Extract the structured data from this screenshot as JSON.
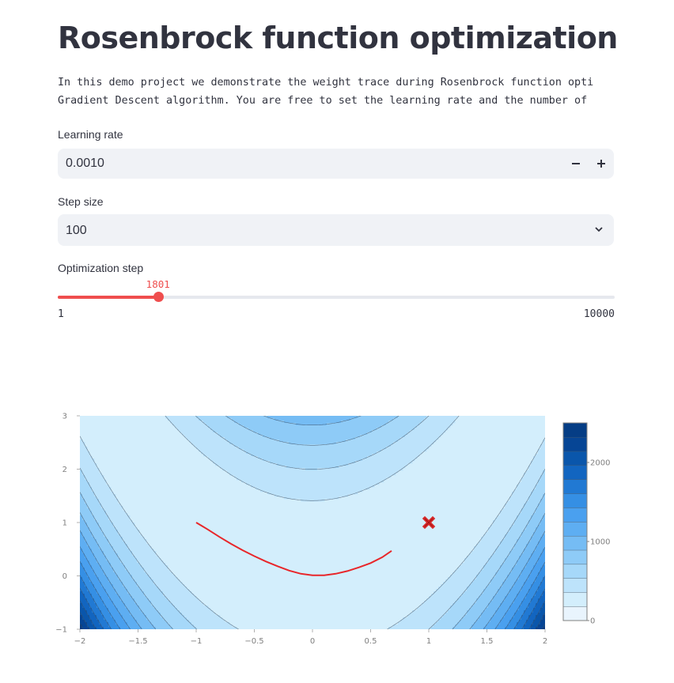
{
  "page": {
    "title": "Rosenbrock function optimization",
    "intro_lines": [
      "In this demo project we demonstrate the weight trace during Rosenbrock function opti",
      "Gradient Descent algorithm. You are free to set the learning rate and the number of"
    ]
  },
  "learning_rate": {
    "label": "Learning rate",
    "value": "0.0010",
    "minus_icon": "minus-icon",
    "plus_icon": "plus-icon"
  },
  "step_size": {
    "label": "Step size",
    "value": "100",
    "icon": "chevron-down-icon"
  },
  "optimization_step": {
    "label": "Optimization step",
    "value": "1801",
    "min": "1",
    "max": "10000",
    "fraction": 0.18
  },
  "colors": {
    "accent": "#ef4e4e",
    "input_bg": "#f0f2f6",
    "trace": "#e8262a",
    "marker": "#d62728"
  },
  "chart_data": {
    "type": "contour",
    "function": "(1 - x)^2 + 100 (y - x^2)^2",
    "xlim": [
      -2,
      2
    ],
    "ylim": [
      -1,
      3
    ],
    "x_ticks": [
      "−2",
      "−1.5",
      "−1",
      "−0.5",
      "0",
      "0.5",
      "1",
      "1.5",
      "2"
    ],
    "y_ticks": [
      "−1",
      "0",
      "1",
      "2",
      "3"
    ],
    "contour_levels": [
      200,
      400,
      600,
      800,
      1000,
      1200,
      1400,
      1600,
      1800,
      2000,
      2200,
      2400
    ],
    "colorscale": [
      "#e9f4fd",
      "#d3eefc",
      "#bde3fb",
      "#a6d8f9",
      "#8ecbf7",
      "#75bcf4",
      "#5eaef2",
      "#4aa0ef",
      "#358fe4",
      "#2179d3",
      "#1265c0",
      "#0a56ab",
      "#064595",
      "#053d85"
    ],
    "colorbar": {
      "ticks": [
        "2000",
        "1000",
        "0"
      ],
      "tick_values": [
        2000,
        1000,
        0
      ],
      "range": [
        0,
        2500
      ]
    },
    "trace": {
      "x": [
        -1.0,
        -0.9,
        -0.8,
        -0.7,
        -0.6,
        -0.5,
        -0.4,
        -0.3,
        -0.2,
        -0.1,
        0.0,
        0.1,
        0.2,
        0.3,
        0.4,
        0.5,
        0.6,
        0.68
      ],
      "y": [
        1.0,
        0.87,
        0.73,
        0.6,
        0.48,
        0.37,
        0.27,
        0.18,
        0.1,
        0.04,
        0.01,
        0.01,
        0.04,
        0.09,
        0.16,
        0.24,
        0.35,
        0.47
      ]
    },
    "optimum": {
      "x": 1,
      "y": 1,
      "marker": "x-marker-icon"
    }
  }
}
